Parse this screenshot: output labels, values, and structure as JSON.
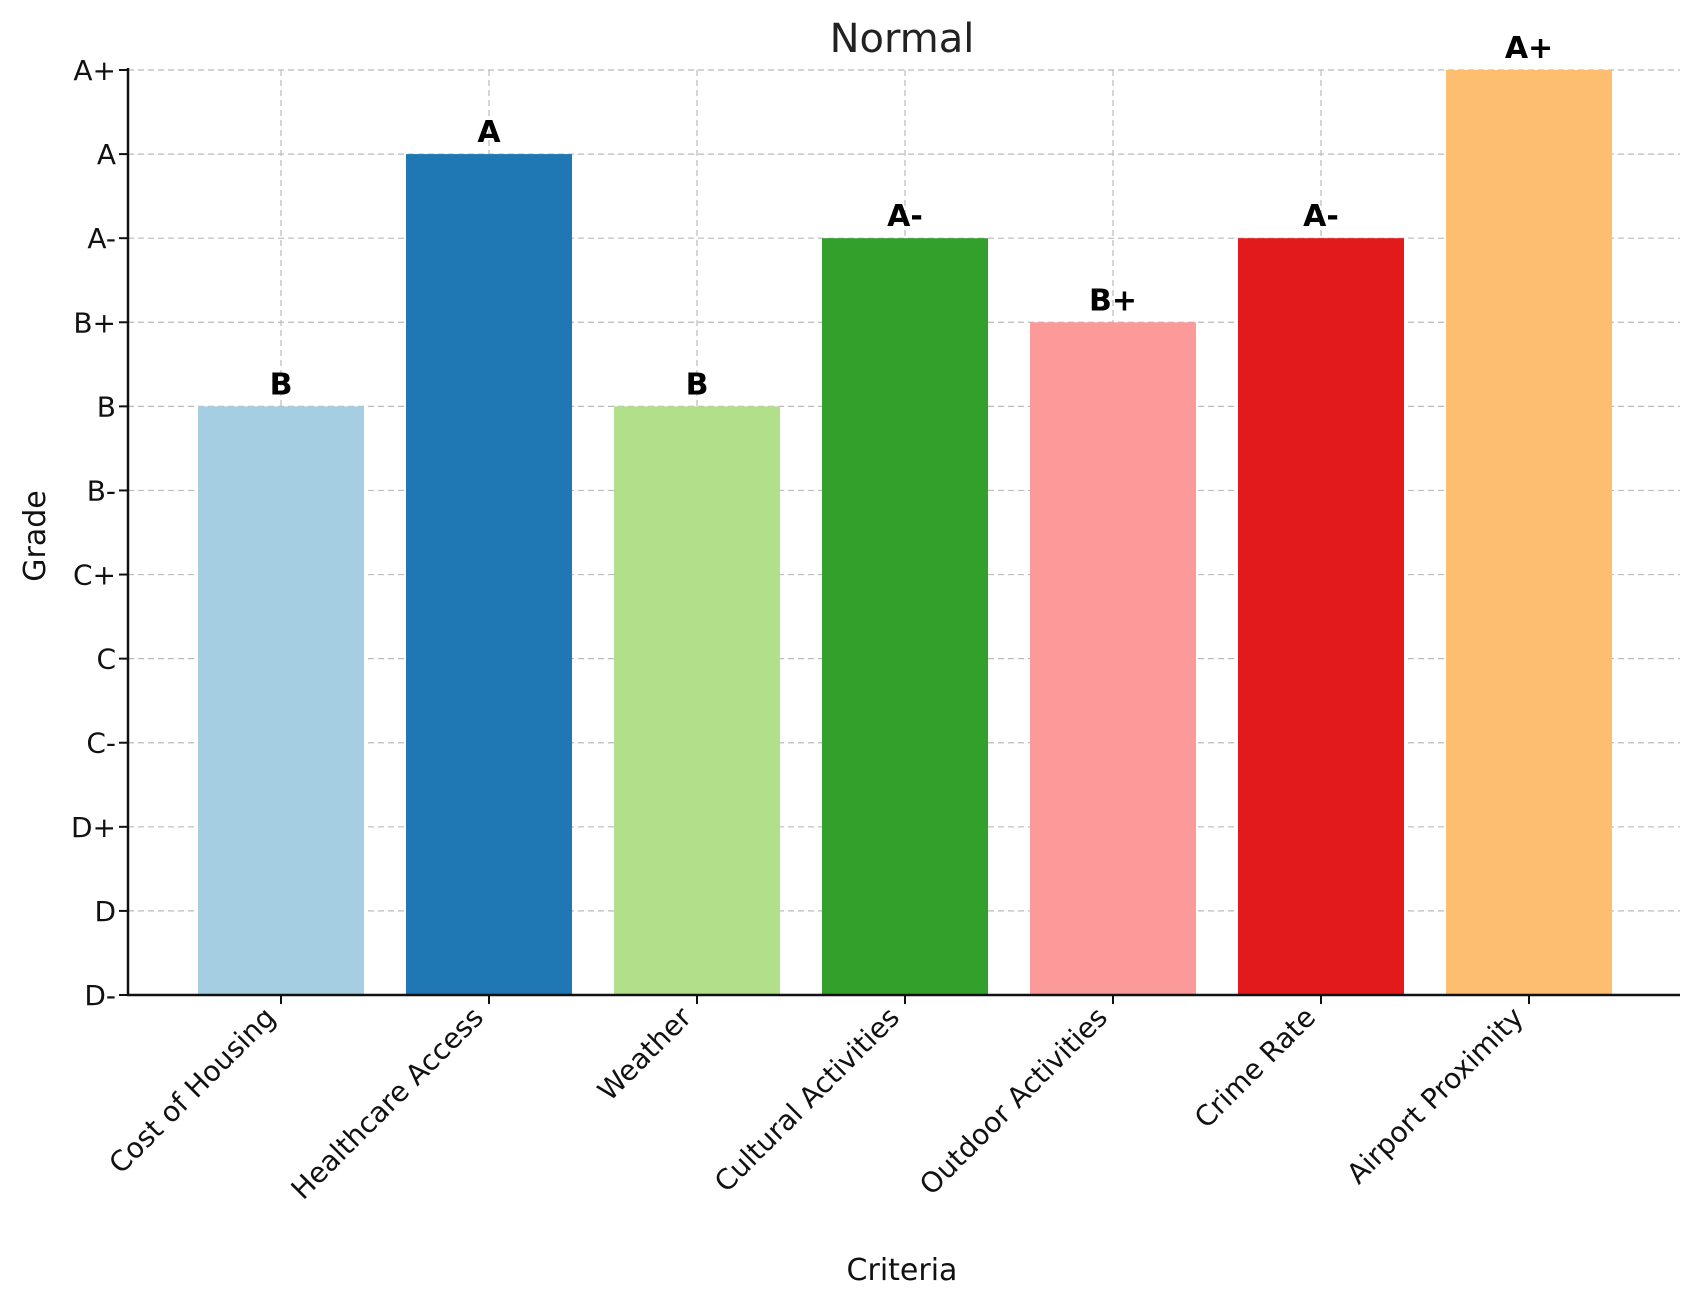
{
  "chart_data": {
    "type": "bar",
    "title": "Normal",
    "xlabel": "Criteria",
    "ylabel": "Grade",
    "y_scale": [
      "D-",
      "D",
      "D+",
      "C-",
      "C",
      "C+",
      "B-",
      "B",
      "B+",
      "A-",
      "A",
      "A+"
    ],
    "categories": [
      "Cost of Housing",
      "Healthcare Access",
      "Weather",
      "Cultural Activities",
      "Outdoor Activities",
      "Crime Rate",
      "Airport Proximity"
    ],
    "values": [
      "B",
      "A",
      "B",
      "A-",
      "B+",
      "A-",
      "A+"
    ],
    "colors": [
      "#a6cee3",
      "#1f78b4",
      "#b2df8a",
      "#33a02c",
      "#fb9a99",
      "#e31a1c",
      "#fdbf6f"
    ],
    "grid": true,
    "data_labels": true
  }
}
